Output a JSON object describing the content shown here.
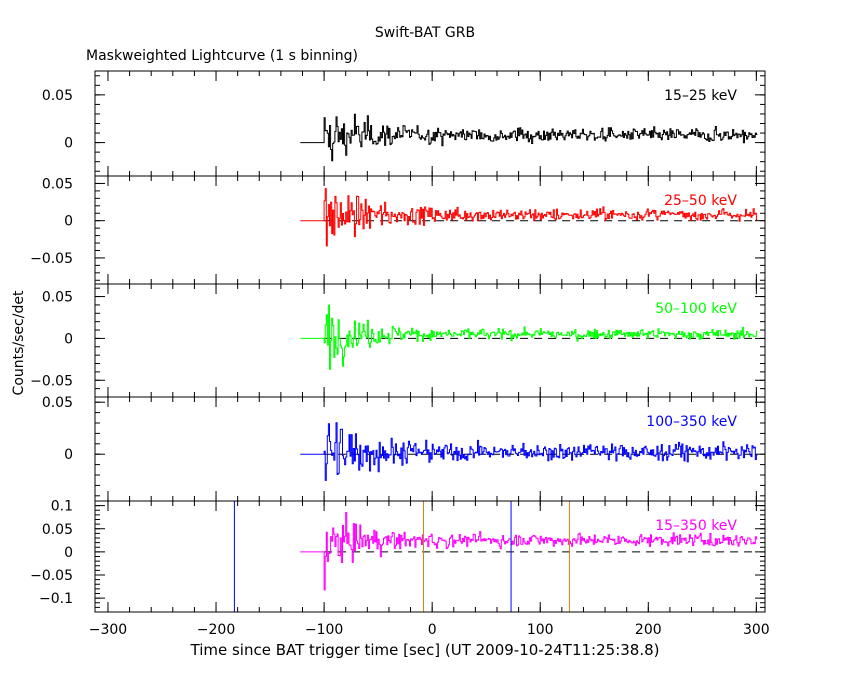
{
  "chart_data": {
    "type": "line",
    "title": "Swift-BAT GRB",
    "subtitle": "Maskweighted Lightcurve (1 s binning)",
    "xlabel": "Time since BAT trigger time [sec] (UT 2009-10-24T11:25:38.8)",
    "ylabel": "Counts/sec/det",
    "xlim": [
      -312,
      308
    ],
    "xticks": [
      -300,
      -200,
      -100,
      0,
      100,
      200,
      300
    ],
    "xticklabels": [
      "−300",
      "−200",
      "−100",
      "0",
      "100",
      "200",
      "300"
    ],
    "data_start": -122,
    "signal_start": -100,
    "data_end": 300,
    "grid": false,
    "legend": "none",
    "panels": [
      {
        "label": "15–25 keV",
        "color": "#000000",
        "ylim": [
          -0.035,
          0.075
        ],
        "yticks": [
          0,
          0.05
        ],
        "yticklabels": [
          "0",
          "0.05"
        ],
        "offset": 0.008,
        "noise": 0.007,
        "burst_amp": 0.028,
        "dashed_zero": false
      },
      {
        "label": "25–50 keV",
        "color": "#ff0000",
        "ylim": [
          -0.085,
          0.06
        ],
        "yticks": [
          -0.05,
          0,
          0.05
        ],
        "yticklabels": [
          "−0.05",
          "0",
          "0.05"
        ],
        "offset": 0.008,
        "noise": 0.008,
        "burst_amp": 0.035,
        "dashed_zero": true
      },
      {
        "label": "50–100 keV",
        "color": "#00ff00",
        "ylim": [
          -0.07,
          0.065
        ],
        "yticks": [
          -0.05,
          0,
          0.05
        ],
        "yticklabels": [
          "−0.05",
          "0",
          "0.05"
        ],
        "offset": 0.005,
        "noise": 0.006,
        "burst_amp": 0.03,
        "dashed_zero": true
      },
      {
        "label": "100–350 keV",
        "color": "#0000ff",
        "ylim": [
          -0.045,
          0.055
        ],
        "yticks": [
          0,
          0.05
        ],
        "yticklabels": [
          "0",
          "0.05"
        ],
        "offset": 0.002,
        "noise": 0.008,
        "burst_amp": 0.025,
        "dashed_zero": true
      },
      {
        "label": "15–350 keV",
        "color": "#ff00ff",
        "ylim": [
          -0.13,
          0.11
        ],
        "yticks": [
          -0.1,
          -0.05,
          0,
          0.05,
          0.1
        ],
        "yticklabels": [
          "−0.1",
          "−0.05",
          "0",
          "0.05",
          "0.1"
        ],
        "offset": 0.025,
        "noise": 0.013,
        "burst_amp": 0.05,
        "dashed_zero": true
      }
    ],
    "markers": [
      {
        "x": -183,
        "color": "#0000ff"
      },
      {
        "x": -8,
        "color": "#cc8800"
      },
      {
        "x": 73,
        "color": "#0000ff"
      },
      {
        "x": 127,
        "color": "#cc8800"
      }
    ]
  }
}
